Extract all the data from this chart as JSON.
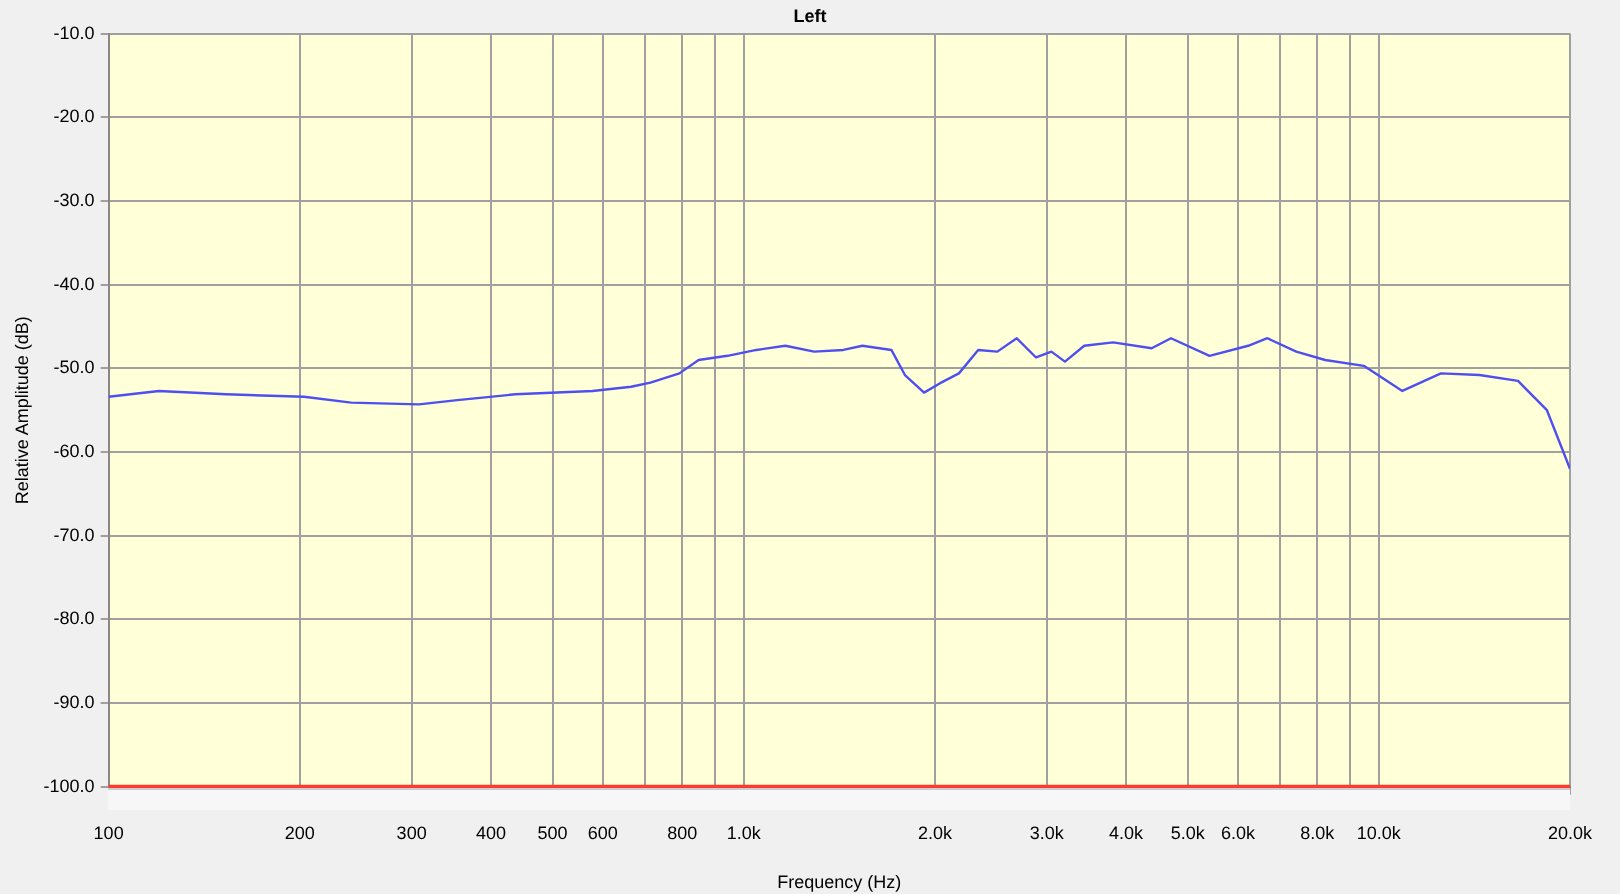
{
  "chart_data": {
    "type": "line",
    "title": "Left",
    "xlabel": "Frequency (Hz)",
    "ylabel": "Relative Amplitude (dB)",
    "log": "x",
    "xlim": [
      100,
      20000
    ],
    "xticks": [
      100,
      200,
      300,
      400,
      500,
      600,
      {
        "value": 700,
        "label": null
      },
      800,
      {
        "value": 900,
        "label": null
      },
      {
        "value": 1000,
        "label": "1.0k"
      },
      {
        "value": 2000,
        "label": "2.0k"
      },
      {
        "value": 3000,
        "label": "3.0k"
      },
      {
        "value": 4000,
        "label": "4.0k"
      },
      {
        "value": 5000,
        "label": "5.0k"
      },
      {
        "value": 6000,
        "label": "6.0k"
      },
      {
        "value": 7000,
        "label": null
      },
      {
        "value": 8000,
        "label": "8.0k"
      },
      {
        "value": 9000,
        "label": null
      },
      {
        "value": 10000,
        "label": "10.0k"
      },
      {
        "value": 20000,
        "label": "20.0k"
      }
    ],
    "ylim": [
      -100,
      -10
    ],
    "yticks": [
      {
        "value": -100,
        "label": "-100.0"
      },
      {
        "value": -90,
        "label": "-90.0"
      },
      {
        "value": -80,
        "label": "-80.0"
      },
      {
        "value": -70,
        "label": "-70.0"
      },
      {
        "value": -60,
        "label": "-60.0"
      },
      {
        "value": -50,
        "label": "-50.0"
      },
      {
        "value": -40,
        "label": "-40.0"
      },
      {
        "value": -30,
        "label": "-30.0"
      },
      {
        "value": -20,
        "label": "-20.0"
      },
      {
        "value": -10,
        "label": "-10.0"
      }
    ],
    "grid": true,
    "legend": false,
    "marker": "none",
    "line_style": "solid",
    "ref_lines": [
      {
        "axis": "y",
        "value": -100,
        "color": "#ff3b2f"
      }
    ],
    "series": [
      {
        "color": "#4f4ff0",
        "x": [
          100,
          120,
          153,
          203,
          241,
          308,
          354,
          437,
          578,
          665,
          713,
          792,
          849,
          943,
          1047,
          1163,
          1291,
          1435,
          1538,
          1708,
          1794,
          1923,
          2035,
          2182,
          2340,
          2508,
          2691,
          2886,
          3051,
          3205,
          3437,
          3816,
          4389,
          4707,
          5413,
          6228,
          6676,
          7413,
          8234,
          9470,
          10890,
          12526,
          14403,
          16566,
          18395,
          20000
        ],
        "values": [
          -53.4,
          -52.7,
          -53.1,
          -53.4,
          -54.1,
          -54.3,
          -53.8,
          -53.1,
          -52.7,
          -52.2,
          -51.7,
          -50.6,
          -49,
          -48.5,
          -47.8,
          -47.3,
          -48,
          -47.8,
          -47.3,
          -47.8,
          -50.8,
          -52.9,
          -51.8,
          -50.6,
          -47.8,
          -48,
          -46.4,
          -48.7,
          -48,
          -49.2,
          -47.3,
          -46.9,
          -47.6,
          -46.4,
          -48.5,
          -47.3,
          -46.4,
          -48,
          -49,
          -49.7,
          -52.7,
          -50.6,
          -50.8,
          -51.5,
          -55,
          -62
        ]
      }
    ]
  }
}
